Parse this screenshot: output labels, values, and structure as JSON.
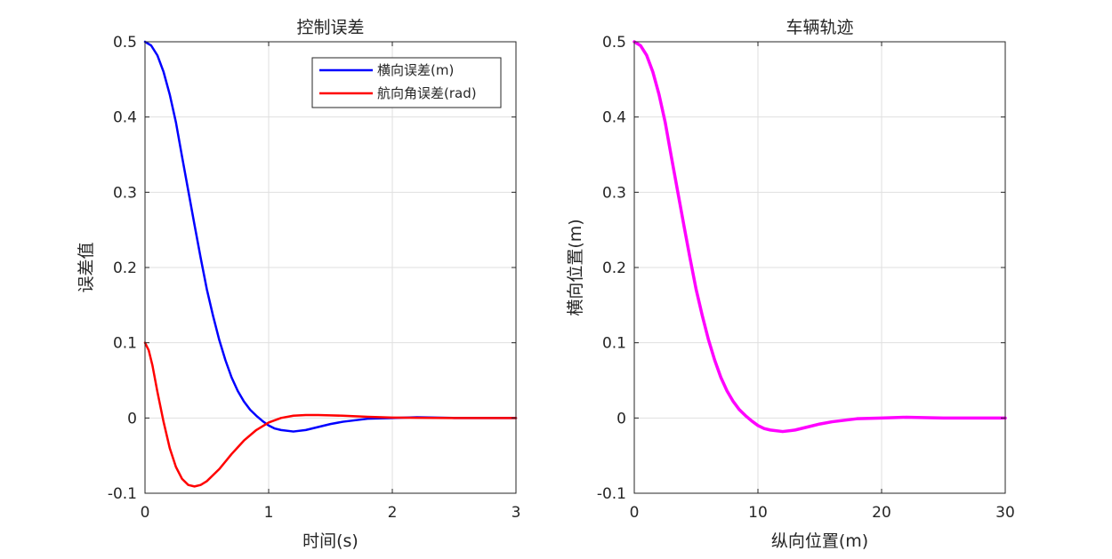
{
  "chart_data": [
    {
      "type": "line",
      "title": "控制误差",
      "xlabel": "时间(s)",
      "ylabel": "误差值",
      "xlim": [
        0,
        3
      ],
      "ylim": [
        -0.1,
        0.5
      ],
      "xticks": [
        0,
        1,
        2,
        3
      ],
      "xtick_labels": [
        "0",
        "1",
        "2",
        "3"
      ],
      "yticks": [
        -0.1,
        0,
        0.1,
        0.2,
        0.3,
        0.4,
        0.5
      ],
      "ytick_labels": [
        "-0.1",
        "0",
        "0.1",
        "0.2",
        "0.3",
        "0.4",
        "0.5"
      ],
      "grid": true,
      "legend": "top-right",
      "series": [
        {
          "name": "横向误差(m)",
          "color": "#0000ff",
          "x": [
            0,
            0.05,
            0.1,
            0.15,
            0.2,
            0.25,
            0.3,
            0.35,
            0.4,
            0.45,
            0.5,
            0.55,
            0.6,
            0.65,
            0.7,
            0.75,
            0.8,
            0.85,
            0.9,
            0.95,
            1.0,
            1.05,
            1.1,
            1.2,
            1.3,
            1.4,
            1.5,
            1.6,
            1.8,
            2.0,
            2.2,
            2.5,
            3.0
          ],
          "y": [
            0.5,
            0.495,
            0.482,
            0.46,
            0.43,
            0.393,
            0.347,
            0.302,
            0.257,
            0.213,
            0.171,
            0.136,
            0.104,
            0.077,
            0.054,
            0.036,
            0.022,
            0.011,
            0.003,
            -0.004,
            -0.01,
            -0.014,
            -0.016,
            -0.018,
            -0.016,
            -0.012,
            -0.008,
            -0.005,
            -0.001,
            0.0,
            0.001,
            0.0,
            0.0
          ]
        },
        {
          "name": "航向角误差(rad)",
          "color": "#ff0000",
          "x": [
            0,
            0.03,
            0.06,
            0.1,
            0.15,
            0.2,
            0.25,
            0.3,
            0.35,
            0.4,
            0.45,
            0.5,
            0.6,
            0.7,
            0.8,
            0.9,
            1.0,
            1.1,
            1.2,
            1.3,
            1.4,
            1.5,
            1.6,
            1.8,
            2.0,
            2.2,
            2.5,
            3.0
          ],
          "y": [
            0.1,
            0.09,
            0.07,
            0.035,
            -0.005,
            -0.04,
            -0.065,
            -0.081,
            -0.089,
            -0.091,
            -0.089,
            -0.084,
            -0.068,
            -0.048,
            -0.03,
            -0.016,
            -0.006,
            0.0,
            0.003,
            0.004,
            0.004,
            0.0035,
            0.003,
            0.0015,
            0.0005,
            0.0002,
            0.0,
            0.0
          ]
        }
      ]
    },
    {
      "type": "line",
      "title": "车辆轨迹",
      "xlabel": "纵向位置(m)",
      "ylabel": "横向位置(m)",
      "xlim": [
        0,
        30
      ],
      "ylim": [
        -0.1,
        0.5
      ],
      "xticks": [
        0,
        10,
        20,
        30
      ],
      "xtick_labels": [
        "0",
        "10",
        "20",
        "30"
      ],
      "yticks": [
        -0.1,
        0,
        0.1,
        0.2,
        0.3,
        0.4,
        0.5
      ],
      "ytick_labels": [
        "-0.1",
        "0",
        "0.1",
        "0.2",
        "0.3",
        "0.4",
        "0.5"
      ],
      "grid": true,
      "series": [
        {
          "color": "#ff00ff",
          "x": [
            0,
            0.5,
            1.0,
            1.5,
            2.0,
            2.5,
            3.0,
            3.5,
            4.0,
            4.5,
            5.0,
            5.5,
            6.0,
            6.5,
            7.0,
            7.5,
            8.0,
            8.5,
            9.0,
            9.5,
            10.0,
            10.5,
            11.0,
            12.0,
            13.0,
            14.0,
            15.0,
            16.0,
            18.0,
            20.0,
            22.0,
            25.0,
            30.0
          ],
          "y": [
            0.5,
            0.495,
            0.482,
            0.46,
            0.43,
            0.393,
            0.347,
            0.302,
            0.257,
            0.213,
            0.171,
            0.136,
            0.104,
            0.077,
            0.054,
            0.036,
            0.022,
            0.011,
            0.003,
            -0.004,
            -0.01,
            -0.014,
            -0.016,
            -0.018,
            -0.016,
            -0.012,
            -0.008,
            -0.005,
            -0.001,
            0.0,
            0.001,
            0.0,
            0.0
          ]
        }
      ]
    }
  ]
}
